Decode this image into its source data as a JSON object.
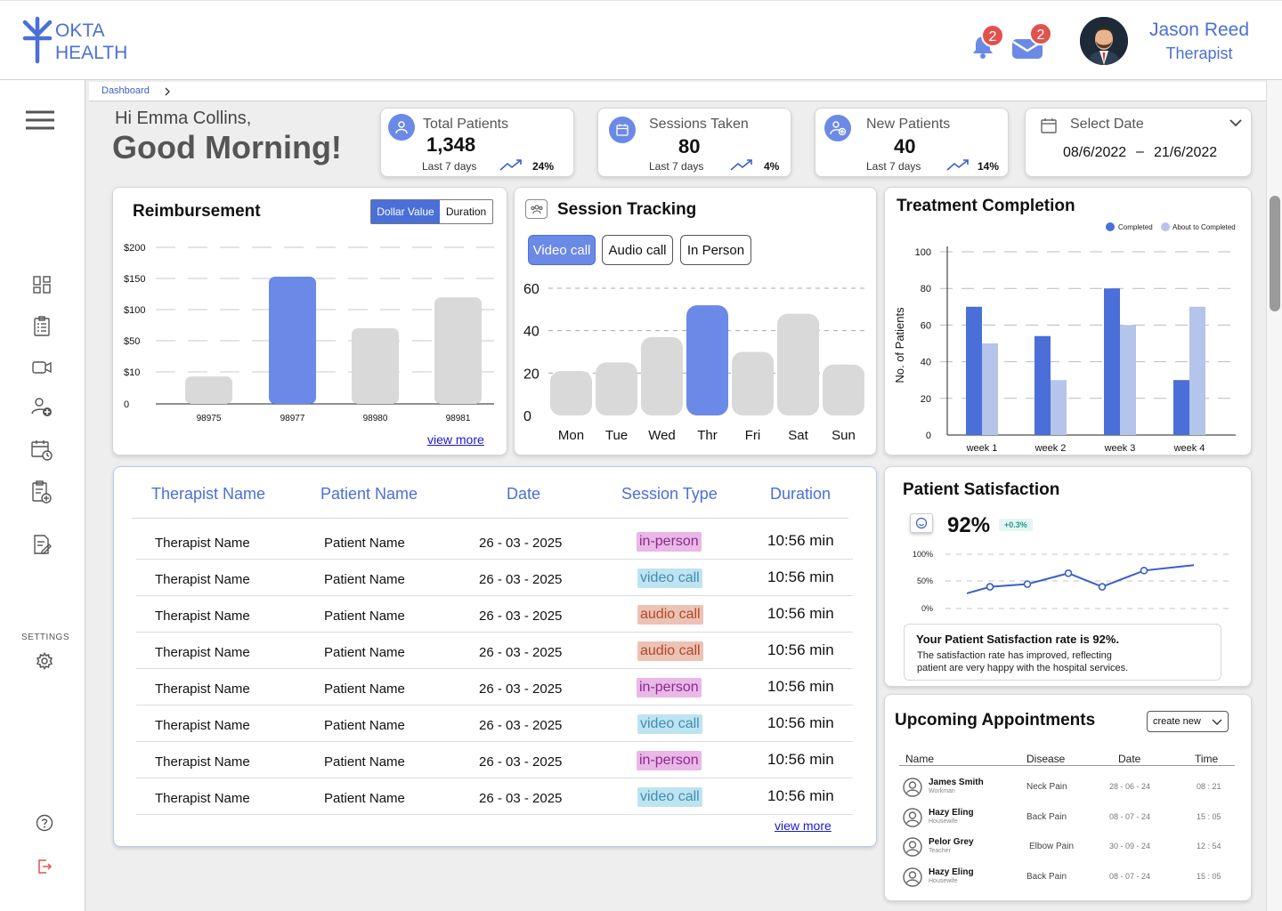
{
  "brand": {
    "line1": "OKTA",
    "line2": "HEALTH"
  },
  "header": {
    "notifications_count": "2",
    "messages_count": "2",
    "user_name": "Jason Reed",
    "user_role": "Therapist"
  },
  "breadcrumb": {
    "label": "Dashboard"
  },
  "greeting": {
    "hi": "Hi Emma Collins,",
    "main": "Good Morning!"
  },
  "kpis": [
    {
      "title": "Total Patients",
      "value": "1,348",
      "sub": "Last 7 days",
      "pct": "24%"
    },
    {
      "title": "Sessions Taken",
      "value": "80",
      "sub": "Last 7 days",
      "pct": "4%"
    },
    {
      "title": "New Patients",
      "value": "40",
      "sub": "Last 7 days",
      "pct": "14%"
    }
  ],
  "date_select": {
    "label": "Select Date",
    "from": "08/6/2022",
    "dash": "–",
    "to": "21/6/2022"
  },
  "sidebar": {
    "settings_label": "SETTINGS"
  },
  "reimbursement": {
    "title": "Reimbursement",
    "toggle": [
      "Dollar Value",
      "Duration"
    ],
    "view_more": "view more"
  },
  "session": {
    "title": "Session Tracking",
    "tabs": [
      "Video call",
      "Audio call",
      "In Person"
    ]
  },
  "treatment": {
    "title": "Treatment Completion"
  },
  "satisfaction": {
    "title": "Patient Satisfaction",
    "value": "92%",
    "delta": "+0.3%",
    "note_title": "Your Patient Satisfaction rate is 92%.",
    "note_body1": "The satisfaction rate has improved, reflecting",
    "note_body2": "patient are very happy with the hospital services."
  },
  "table": {
    "headers": [
      "Therapist Name",
      "Patient Name",
      "Date",
      "Session Type",
      "Duration"
    ],
    "rows": [
      {
        "therapist": "Therapist Name",
        "patient": "Patient Name",
        "date": "26 - 03 - 2025",
        "type": "in-person",
        "duration": "10:56 min"
      },
      {
        "therapist": "Therapist Name",
        "patient": "Patient Name",
        "date": "26 - 03 - 2025",
        "type": "video call",
        "duration": "10:56 min"
      },
      {
        "therapist": "Therapist Name",
        "patient": "Patient Name",
        "date": "26 - 03 - 2025",
        "type": "audio call",
        "duration": "10:56 min"
      },
      {
        "therapist": "Therapist Name",
        "patient": "Patient Name",
        "date": "26 - 03 - 2025",
        "type": "audio call",
        "duration": "10:56 min"
      },
      {
        "therapist": "Therapist Name",
        "patient": "Patient Name",
        "date": "26 - 03 - 2025",
        "type": "in-person",
        "duration": "10:56 min"
      },
      {
        "therapist": "Therapist Name",
        "patient": "Patient Name",
        "date": "26 - 03 - 2025",
        "type": "video call",
        "duration": "10:56 min"
      },
      {
        "therapist": "Therapist Name",
        "patient": "Patient Name",
        "date": "26 - 03 - 2025",
        "type": "in-person",
        "duration": "10:56 min"
      },
      {
        "therapist": "Therapist Name",
        "patient": "Patient Name",
        "date": "26 - 03 - 2025",
        "type": "video call",
        "duration": "10:56 min"
      }
    ],
    "view_more": "view more"
  },
  "appointments": {
    "title": "Upcoming Appointments",
    "create_label": "create new",
    "headers": [
      "Name",
      "Disease",
      "Date",
      "Time"
    ],
    "rows": [
      {
        "name": "James Smith",
        "role": "Workman",
        "disease": "Neck Pain",
        "date": "28 - 06 - 24",
        "time": "08 : 21"
      },
      {
        "name": "Hazy Eling",
        "role": "Housewife",
        "disease": "Back Pain",
        "date": "08 - 07 - 24",
        "time": "15 : 05"
      },
      {
        "name": "Pelor Grey",
        "role": "Teacher",
        "disease": "Elbow Pain",
        "date": "30 - 09 - 24",
        "time": "12 : 54"
      },
      {
        "name": "Hazy Eling",
        "role": "Housewife",
        "disease": "Back Pain",
        "date": "08 - 07 - 24",
        "time": "15 : 05"
      }
    ]
  },
  "colors": {
    "accent": "#6b89e6",
    "bar_gray": "#d9d9d9",
    "completed": "#4a6fd8",
    "about": "#b4c4ea"
  },
  "chart_data": [
    {
      "type": "bar",
      "id": "reimbursement",
      "categories": [
        "98975",
        "98977",
        "98980",
        "98981"
      ],
      "values": [
        40,
        185,
        110,
        155
      ],
      "highlight": 1,
      "ylabels": [
        "$200",
        "$150",
        "$100",
        "$50",
        "$10",
        "0"
      ]
    },
    {
      "type": "bar",
      "id": "session",
      "categories": [
        "Mon",
        "Tue",
        "Wed",
        "Thr",
        "Fri",
        "Sat",
        "Sun"
      ],
      "values": [
        21,
        25,
        37,
        52,
        30,
        48,
        24
      ],
      "highlight": 3,
      "ylim": [
        0,
        60
      ],
      "yticks": [
        "60",
        "40",
        "20",
        "0"
      ]
    },
    {
      "type": "bar",
      "id": "treatment",
      "categories": [
        "week 1",
        "week 2",
        "week 3",
        "week 4"
      ],
      "ylabel": "No. of Patients",
      "ylim": [
        0,
        100
      ],
      "yticks": [
        "100",
        "80",
        "60",
        "40",
        "20",
        "0"
      ],
      "series": [
        {
          "name": "Completed",
          "values": [
            70,
            54,
            80,
            30
          ]
        },
        {
          "name": "About to Completed",
          "values": [
            50,
            30,
            60,
            70
          ]
        }
      ]
    },
    {
      "type": "line",
      "id": "satisfaction",
      "yticks": [
        "100%",
        "50%",
        "0%"
      ],
      "values": [
        28,
        40,
        45,
        65,
        40,
        70,
        80
      ]
    }
  ]
}
